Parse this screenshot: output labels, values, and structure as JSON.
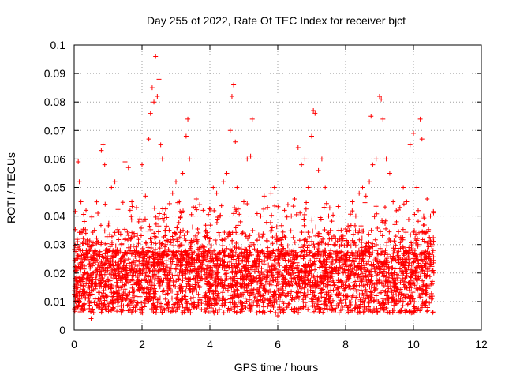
{
  "chart_data": {
    "type": "scatter",
    "title": "Day 255 of 2022, Rate Of TEC Index for receiver bjct",
    "xlabel": "GPS time / hours",
    "ylabel": "ROTI / TECUs",
    "xlim": [
      0,
      12
    ],
    "ylim": [
      0,
      0.1
    ],
    "x_ticks": [
      0,
      2,
      4,
      6,
      8,
      10,
      12
    ],
    "x_tick_labels": [
      "0",
      "2",
      "4",
      "6",
      "8",
      "10",
      "12"
    ],
    "y_ticks": [
      0,
      0.01,
      0.02,
      0.03,
      0.04,
      0.05,
      0.06,
      0.07,
      0.08,
      0.09,
      0.1
    ],
    "y_tick_labels": [
      "0",
      "0.01",
      "0.02",
      "0.03",
      "0.04",
      "0.05",
      "0.06",
      "0.07",
      "0.08",
      "0.09",
      "0.1"
    ],
    "grid": true,
    "legend": "none",
    "marker": "plus",
    "color": "#ff0000",
    "data_extent_x": [
      0,
      10.6
    ],
    "series": [
      {
        "points": [
          [
            0.05,
            0.012
          ],
          [
            0.1,
            0.031
          ],
          [
            0.12,
            0.059
          ],
          [
            0.15,
            0.052
          ],
          [
            0.2,
            0.045
          ],
          [
            0.3,
            0.02
          ],
          [
            0.35,
            0.042
          ],
          [
            0.4,
            0.015
          ],
          [
            0.5,
            0.004
          ],
          [
            0.6,
            0.035
          ],
          [
            0.7,
            0.041
          ],
          [
            0.8,
            0.063
          ],
          [
            0.85,
            0.065
          ],
          [
            0.9,
            0.058
          ],
          [
            1.0,
            0.028
          ],
          [
            1.1,
            0.05
          ],
          [
            1.2,
            0.052
          ],
          [
            1.3,
            0.018
          ],
          [
            1.4,
            0.03
          ],
          [
            1.5,
            0.059
          ],
          [
            1.6,
            0.057
          ],
          [
            1.7,
            0.045
          ],
          [
            1.8,
            0.02
          ],
          [
            1.9,
            0.038
          ],
          [
            2.0,
            0.058
          ],
          [
            2.1,
            0.047
          ],
          [
            2.2,
            0.067
          ],
          [
            2.25,
            0.076
          ],
          [
            2.3,
            0.085
          ],
          [
            2.35,
            0.08
          ],
          [
            2.4,
            0.096
          ],
          [
            2.45,
            0.082
          ],
          [
            2.5,
            0.088
          ],
          [
            2.55,
            0.065
          ],
          [
            2.6,
            0.06
          ],
          [
            2.7,
            0.03
          ],
          [
            2.8,
            0.035
          ],
          [
            2.9,
            0.048
          ],
          [
            3.0,
            0.052
          ],
          [
            3.1,
            0.045
          ],
          [
            3.2,
            0.055
          ],
          [
            3.3,
            0.068
          ],
          [
            3.35,
            0.074
          ],
          [
            3.4,
            0.06
          ],
          [
            3.5,
            0.04
          ],
          [
            3.6,
            0.046
          ],
          [
            3.7,
            0.044
          ],
          [
            3.8,
            0.042
          ],
          [
            3.9,
            0.02
          ],
          [
            4.0,
            0.032
          ],
          [
            4.1,
            0.05
          ],
          [
            4.2,
            0.048
          ],
          [
            4.3,
            0.04
          ],
          [
            4.4,
            0.052
          ],
          [
            4.5,
            0.055
          ],
          [
            4.6,
            0.07
          ],
          [
            4.65,
            0.082
          ],
          [
            4.7,
            0.086
          ],
          [
            4.75,
            0.066
          ],
          [
            4.8,
            0.05
          ],
          [
            4.9,
            0.038
          ],
          [
            5.0,
            0.045
          ],
          [
            5.1,
            0.06
          ],
          [
            5.2,
            0.061
          ],
          [
            5.25,
            0.074
          ],
          [
            5.3,
            0.03
          ],
          [
            5.4,
            0.025
          ],
          [
            5.5,
            0.04
          ],
          [
            5.6,
            0.047
          ],
          [
            5.7,
            0.043
          ],
          [
            5.8,
            0.048
          ],
          [
            5.9,
            0.05
          ],
          [
            6.0,
            0.005
          ],
          [
            6.1,
            0.03
          ],
          [
            6.2,
            0.042
          ],
          [
            6.3,
            0.044
          ],
          [
            6.4,
            0.04
          ],
          [
            6.5,
            0.046
          ],
          [
            6.6,
            0.064
          ],
          [
            6.7,
            0.058
          ],
          [
            6.8,
            0.06
          ],
          [
            6.9,
            0.05
          ],
          [
            7.0,
            0.068
          ],
          [
            7.05,
            0.077
          ],
          [
            7.1,
            0.076
          ],
          [
            7.2,
            0.056
          ],
          [
            7.3,
            0.06
          ],
          [
            7.4,
            0.05
          ],
          [
            7.5,
            0.04
          ],
          [
            7.6,
            0.032
          ],
          [
            7.7,
            0.03
          ],
          [
            7.8,
            0.035
          ],
          [
            7.9,
            0.025
          ],
          [
            8.0,
            0.02
          ],
          [
            8.1,
            0.035
          ],
          [
            8.2,
            0.045
          ],
          [
            8.3,
            0.04
          ],
          [
            8.4,
            0.048
          ],
          [
            8.5,
            0.05
          ],
          [
            8.6,
            0.047
          ],
          [
            8.7,
            0.052
          ],
          [
            8.75,
            0.075
          ],
          [
            8.8,
            0.058
          ],
          [
            8.9,
            0.06
          ],
          [
            9.0,
            0.082
          ],
          [
            9.05,
            0.081
          ],
          [
            9.1,
            0.074
          ],
          [
            9.2,
            0.06
          ],
          [
            9.3,
            0.055
          ],
          [
            9.4,
            0.045
          ],
          [
            9.5,
            0.038
          ],
          [
            9.6,
            0.043
          ],
          [
            9.7,
            0.05
          ],
          [
            9.8,
            0.045
          ],
          [
            9.9,
            0.065
          ],
          [
            10.0,
            0.069
          ],
          [
            10.1,
            0.05
          ],
          [
            10.2,
            0.074
          ],
          [
            10.25,
            0.067
          ],
          [
            10.3,
            0.04
          ],
          [
            10.4,
            0.046
          ],
          [
            10.5,
            0.04
          ],
          [
            10.55,
            0.03
          ],
          [
            10.6,
            0.02
          ]
        ]
      }
    ]
  }
}
